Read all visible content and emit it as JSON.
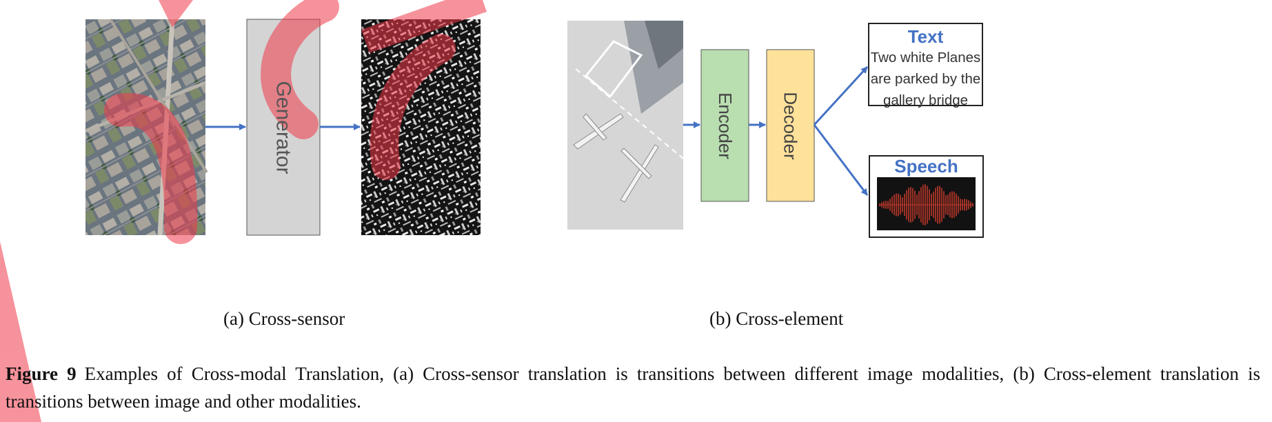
{
  "panel_a": {
    "generator_label": "Generator",
    "subcaption": "(a) Cross-sensor"
  },
  "panel_b": {
    "encoder_label": "Encoder",
    "decoder_label": "Decoder",
    "text_box": {
      "title": "Text",
      "lines": [
        "Two white Planes",
        "are  parked by the",
        "gallery bridge"
      ]
    },
    "speech_box": {
      "title": "Speech"
    },
    "subcaption": "(b) Cross-element"
  },
  "caption": {
    "label": "Figure 9",
    "text": "Examples of Cross-modal Translation, (a) Cross-sensor translation is transitions between different image modalities, (b) Cross-element translation is transitions between image and other modalities."
  },
  "colors": {
    "arrow": "#4472c4",
    "generator_fill": "#d4d4d4",
    "encoder_fill": "#b9deb0",
    "decoder_fill": "#ffe29a",
    "title_blue": "#4472c4",
    "watermark": "#f03a4a",
    "waveform": "#c0392b"
  },
  "icons": [
    "aerial-city-image",
    "sar-image",
    "airport-image",
    "speech-waveform-icon"
  ]
}
